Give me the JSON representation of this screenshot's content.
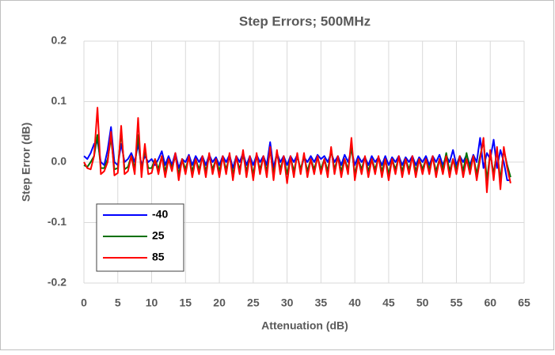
{
  "chart_data": {
    "type": "line",
    "title": "Step Errors;  500MHz",
    "xlabel": "Attenuation (dB)",
    "ylabel": "Step Error (dB)",
    "x": [
      0,
      0.5,
      1,
      1.5,
      2,
      2.5,
      3,
      3.5,
      4,
      4.5,
      5,
      5.5,
      6,
      6.5,
      7,
      7.5,
      8,
      8.5,
      9,
      9.5,
      10,
      10.5,
      11,
      11.5,
      12,
      12.5,
      13,
      13.5,
      14,
      14.5,
      15,
      15.5,
      16,
      16.5,
      17,
      17.5,
      18,
      18.5,
      19,
      19.5,
      20,
      20.5,
      21,
      21.5,
      22,
      22.5,
      23,
      23.5,
      24,
      24.5,
      25,
      25.5,
      26,
      26.5,
      27,
      27.5,
      28,
      28.5,
      29,
      29.5,
      30,
      30.5,
      31,
      31.5,
      32,
      32.5,
      33,
      33.5,
      34,
      34.5,
      35,
      35.5,
      36,
      36.5,
      37,
      37.5,
      38,
      38.5,
      39,
      39.5,
      40,
      40.5,
      41,
      41.5,
      42,
      42.5,
      43,
      43.5,
      44,
      44.5,
      45,
      45.5,
      46,
      46.5,
      47,
      47.5,
      48,
      48.5,
      49,
      49.5,
      50,
      50.5,
      51,
      51.5,
      52,
      52.5,
      53,
      53.5,
      54,
      54.5,
      55,
      55.5,
      56,
      56.5,
      57,
      57.5,
      58,
      58.5,
      59,
      59.5,
      60,
      60.5,
      61,
      61.5,
      62,
      62.5,
      63
    ],
    "series": [
      {
        "name": "-40",
        "color": "#0000ff",
        "values": [
          0.01,
          0.005,
          0.015,
          0.03,
          0.035,
          0,
          -0.005,
          0.02,
          0.058,
          0,
          -0.005,
          0.03,
          0,
          0.005,
          0.015,
          0,
          0.03,
          -0.005,
          0.01,
          0,
          0.005,
          -0.005,
          0.005,
          0.018,
          -0.005,
          0.01,
          -0.005,
          0.015,
          -0.01,
          0.005,
          0,
          0.012,
          -0.005,
          0.01,
          0,
          0.01,
          -0.005,
          0.012,
          0,
          0.008,
          -0.005,
          0.01,
          0,
          0.012,
          -0.01,
          0.01,
          0,
          0.015,
          -0.005,
          0.01,
          -0.005,
          0.012,
          0,
          0.01,
          -0.005,
          0.033,
          -0.01,
          0.015,
          0,
          0.01,
          -0.005,
          0.01,
          0,
          0.012,
          -0.015,
          0.008,
          0,
          0.01,
          0,
          0.012,
          0.005,
          0.01,
          0,
          0.015,
          0,
          0.01,
          -0.005,
          0.012,
          0,
          0.02,
          -0.005,
          0.01,
          0,
          0.008,
          -0.005,
          0.01,
          0,
          0.008,
          -0.005,
          0.01,
          -0.005,
          0.008,
          0,
          0.01,
          -0.005,
          0.008,
          0,
          0.01,
          -0.005,
          0.008,
          0,
          0.01,
          -0.005,
          0.01,
          0,
          0.012,
          -0.005,
          0.01,
          0,
          0.02,
          -0.005,
          0.01,
          0,
          0.012,
          -0.005,
          0.012,
          0,
          0.04,
          -0.01,
          0.015,
          0.005,
          0.037,
          -0.01,
          0.02,
          0,
          -0.03,
          -0.03
        ]
      },
      {
        "name": "25",
        "color": "#007000",
        "values": [
          -0.005,
          -0.008,
          0,
          0.01,
          0.045,
          -0.01,
          -0.01,
          0.005,
          0.04,
          -0.012,
          -0.01,
          0.05,
          -0.012,
          -0.008,
          0.01,
          -0.01,
          0.045,
          -0.015,
          0.02,
          -0.01,
          -0.01,
          0.005,
          -0.012,
          0.01,
          -0.015,
          0.005,
          -0.01,
          0.01,
          -0.02,
          0.005,
          -0.012,
          0.008,
          -0.015,
          0.005,
          -0.012,
          0.008,
          -0.015,
          0.01,
          -0.012,
          0.005,
          -0.015,
          0.008,
          -0.012,
          0.01,
          -0.02,
          0.008,
          -0.012,
          0.012,
          -0.015,
          0.008,
          -0.02,
          0.01,
          -0.012,
          0.008,
          -0.015,
          0.02,
          -0.02,
          0.015,
          -0.012,
          0.008,
          -0.02,
          0.008,
          -0.015,
          0.01,
          -0.012,
          0.01,
          -0.015,
          0.005,
          -0.012,
          0.008,
          -0.012,
          0.005,
          -0.015,
          0.02,
          -0.012,
          0.008,
          -0.015,
          0.005,
          -0.012,
          0.025,
          -0.02,
          0.005,
          -0.012,
          0.008,
          -0.015,
          0.005,
          -0.012,
          0.008,
          -0.015,
          0.005,
          -0.02,
          0.005,
          -0.012,
          0.008,
          -0.015,
          0.005,
          -0.012,
          0.008,
          -0.015,
          0.005,
          -0.012,
          0.005,
          -0.012,
          0.008,
          -0.015,
          0.005,
          -0.012,
          0.015,
          -0.015,
          0.005,
          -0.012,
          0.01,
          -0.015,
          0.015,
          -0.012,
          0.01,
          -0.02,
          0.01,
          0.035,
          -0.03,
          0.015,
          -0.02,
          0.02,
          -0.03,
          0.02,
          -0.005,
          -0.025
        ]
      },
      {
        "name": "85",
        "color": "#ff0000",
        "values": [
          0,
          -0.01,
          -0.012,
          0.01,
          0.09,
          -0.02,
          -0.015,
          0,
          0.05,
          -0.022,
          -0.018,
          0.06,
          -0.02,
          -0.015,
          0.01,
          -0.02,
          0.073,
          -0.025,
          0.03,
          -0.02,
          -0.018,
          0.005,
          -0.02,
          0.01,
          -0.025,
          0.005,
          -0.015,
          0.015,
          -0.03,
          0.005,
          -0.02,
          0.01,
          -0.025,
          0.005,
          -0.02,
          0.01,
          -0.025,
          0.015,
          -0.02,
          0.005,
          -0.025,
          0.01,
          -0.02,
          0.015,
          -0.03,
          0.01,
          -0.02,
          0.02,
          -0.025,
          0.01,
          -0.03,
          0.015,
          -0.02,
          0.01,
          -0.025,
          0.025,
          -0.03,
          0.02,
          -0.02,
          0.01,
          -0.035,
          0.01,
          -0.025,
          0.015,
          -0.02,
          0.015,
          -0.025,
          0.005,
          -0.02,
          0.01,
          -0.02,
          0.005,
          -0.025,
          0.025,
          -0.02,
          0.01,
          -0.025,
          0.005,
          -0.02,
          0.04,
          -0.03,
          0.005,
          -0.02,
          0.01,
          -0.025,
          0.005,
          -0.02,
          0.01,
          -0.025,
          0.005,
          -0.03,
          0.005,
          -0.02,
          0.01,
          -0.025,
          0.005,
          -0.02,
          0.01,
          -0.025,
          0.005,
          -0.02,
          0.005,
          -0.02,
          0.01,
          -0.025,
          0.005,
          -0.02,
          0.01,
          -0.025,
          0.005,
          -0.02,
          0.01,
          -0.025,
          0.005,
          -0.02,
          0.01,
          -0.03,
          0.005,
          0.04,
          -0.05,
          0.02,
          -0.03,
          0.025,
          -0.045,
          0.025,
          -0.01,
          -0.035
        ]
      }
    ],
    "xlim": [
      0,
      65
    ],
    "xticks": [
      0,
      5,
      10,
      15,
      20,
      25,
      30,
      35,
      40,
      45,
      50,
      55,
      60,
      65
    ],
    "ylim": [
      -0.2,
      0.2
    ],
    "yticks": [
      -0.2,
      -0.1,
      {
        "value": 0,
        "label": "0.0"
      },
      0.1,
      0.2
    ],
    "grid": true,
    "legend": "lower left"
  }
}
